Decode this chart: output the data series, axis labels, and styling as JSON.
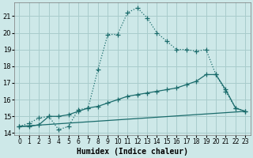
{
  "xlabel": "Humidex (Indice chaleur)",
  "bg_color": "#cde8e8",
  "grid_color": "#a8cccc",
  "line_color": "#1a6b6b",
  "xlim": [
    -0.5,
    23.5
  ],
  "ylim": [
    13.9,
    21.8
  ],
  "yticks": [
    14,
    15,
    16,
    17,
    18,
    19,
    20,
    21
  ],
  "xticks": [
    0,
    1,
    2,
    3,
    4,
    5,
    6,
    7,
    8,
    9,
    10,
    11,
    12,
    13,
    14,
    15,
    16,
    17,
    18,
    19,
    20,
    21,
    22,
    23
  ],
  "curve_dotted": {
    "x": [
      0,
      1,
      2,
      3,
      4,
      5,
      6,
      7,
      8,
      9,
      10,
      11,
      12,
      13,
      14,
      15,
      16,
      17,
      18,
      19,
      20,
      21,
      22,
      23
    ],
    "y": [
      14.4,
      14.6,
      14.9,
      15.0,
      14.2,
      14.4,
      15.4,
      15.5,
      17.8,
      19.9,
      19.9,
      21.2,
      21.5,
      20.9,
      20.0,
      19.5,
      19.0,
      19.0,
      18.9,
      19.0,
      17.5,
      16.5,
      15.5,
      15.3
    ]
  },
  "curve_flat": {
    "x": [
      0,
      23
    ],
    "y": [
      14.4,
      15.3
    ]
  },
  "curve_mid_markers": {
    "x": [
      0,
      1,
      2,
      3,
      4,
      5,
      6,
      7,
      8,
      9,
      10,
      11,
      12,
      13,
      14,
      15,
      16,
      17,
      18,
      19,
      20,
      21,
      22,
      23
    ],
    "y": [
      14.4,
      14.4,
      14.5,
      15.0,
      15.0,
      15.1,
      15.3,
      15.5,
      15.6,
      15.8,
      16.0,
      16.2,
      16.3,
      16.4,
      16.5,
      16.6,
      16.7,
      16.9,
      17.1,
      17.5,
      17.5,
      16.6,
      15.5,
      15.3
    ]
  },
  "curve_v_shape": {
    "x": [
      0,
      1,
      2,
      3,
      4,
      5,
      6,
      7,
      8
    ],
    "y": [
      14.4,
      14.4,
      14.9,
      15.0,
      14.2,
      14.4,
      15.4,
      15.5,
      15.6
    ]
  }
}
